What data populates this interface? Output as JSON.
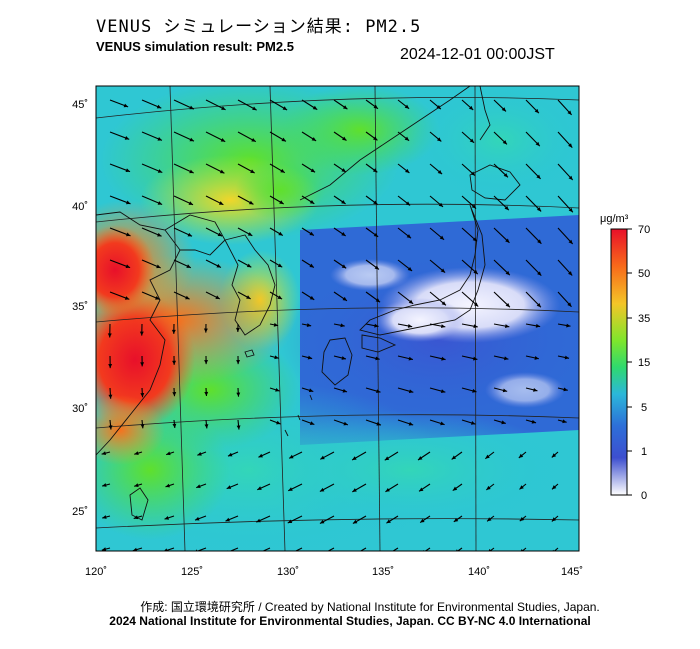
{
  "title_jp": "VENUS シミュレーション結果: PM2.5",
  "title_en": "VENUS simulation result: PM2.5",
  "datetime": "2024-12-01 00:00JST",
  "map": {
    "lon_range": [
      120,
      145
    ],
    "lat_range": [
      23,
      46
    ],
    "lon_ticks": [
      "120˚",
      "125˚",
      "130˚",
      "135˚",
      "140˚",
      "145˚"
    ],
    "lat_ticks": [
      "45˚",
      "40˚",
      "35˚",
      "30˚",
      "25˚"
    ]
  },
  "colorbar": {
    "unit": "μg/m³",
    "labels": [
      "70",
      "50",
      "35",
      "15",
      "5",
      "1",
      "0"
    ],
    "colors": [
      "#e8102a",
      "#f86a1a",
      "#f4c528",
      "#7ee62c",
      "#2fd96e",
      "#2bb7d9",
      "#2d6fd8",
      "#3d4fcf",
      "#ffffff"
    ]
  },
  "credit_line1": "作成: 国立環境研究所 / Created by National Institute for Environmental Studies, Japan.",
  "credit_line2": "2024 National Institute for Environmental Studies, Japan. CC BY-NC 4.0 International"
}
